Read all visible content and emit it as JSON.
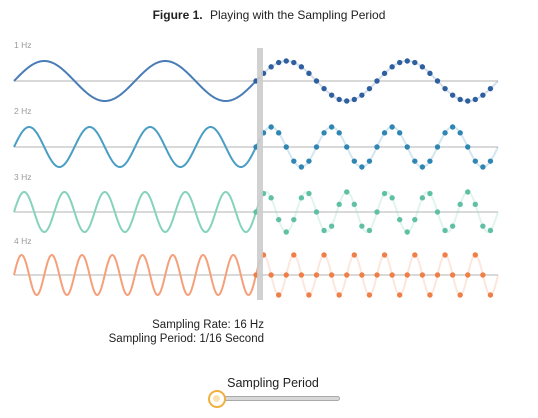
{
  "figure": {
    "label": "Figure 1.",
    "title": "Playing with the Sampling Period"
  },
  "rows": [
    {
      "label": "1 Hz",
      "frequency_hz": 1,
      "color": "#4a7db5",
      "dot_color": "#2e5f9e"
    },
    {
      "label": "2 Hz",
      "frequency_hz": 2,
      "color": "#4a9ec4",
      "dot_color": "#2f86b3"
    },
    {
      "label": "3 Hz",
      "frequency_hz": 3,
      "color": "#86d2bd",
      "dot_color": "#5fc0a4"
    },
    {
      "label": "4 Hz",
      "frequency_hz": 4,
      "color": "#f5a07a",
      "dot_color": "#ef7f47"
    }
  ],
  "sampling": {
    "rate_text": "Sampling Rate: 16 Hz",
    "period_text": "Sampling Period: 1/16 Second",
    "rate_hz": 16,
    "shown_seconds": 4,
    "sampled_from_second": 2
  },
  "slider": {
    "label": "Sampling Period",
    "value": 0,
    "accent": "#f0b040"
  },
  "colors": {
    "axis": "#9a9a9a",
    "divider": "#cccccc"
  }
}
